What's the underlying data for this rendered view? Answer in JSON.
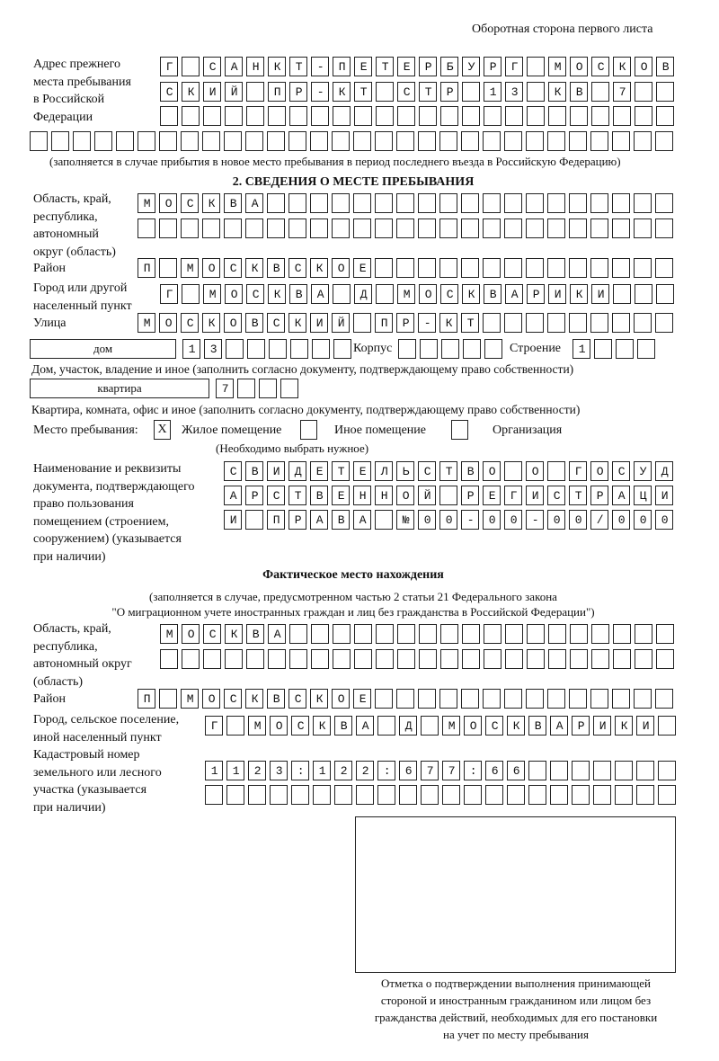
{
  "header": "Оборотная сторона первого листа",
  "previous_address": {
    "label": [
      "Адрес прежнего",
      "места пребывания",
      "в Российской",
      "Федерации"
    ],
    "rows": [
      "Г САНКТ-ПЕТЕРБУРГ МОСКОВ",
      "СКИЙ ПР-КТ СТР 13 КВ 7  ",
      "",
      ""
    ],
    "note": "(заполняется в случае прибытия в новое место пребывания в период последнего въезда в Российскую Федерацию)"
  },
  "section2": {
    "title": "2. СВЕДЕНИЯ О МЕСТЕ ПРЕБЫВАНИЯ",
    "region_label": [
      "Область, край,",
      "республика,",
      "автономный",
      "округ (область)"
    ],
    "region_rows": [
      "МОСКВА",
      ""
    ],
    "district_label": "Район",
    "district": "П МОСКВСКОЕ",
    "city_label": [
      "Город или другой",
      "населенный пункт"
    ],
    "city": "Г МОСКВА Д МОСКВАРИКИ",
    "street_label": "Улица",
    "street": "МОСКОВСКИЙ ПР-КТ",
    "house_type": "дом",
    "house": "13",
    "korpus_label": "Корпус",
    "korpus": "",
    "building_label": "Строение",
    "building": "1",
    "house_note": "Дом, участок, владение и иное (заполнить согласно документу, подтверждающему право собственности)",
    "flat_type": "квартира",
    "flat": "7",
    "flat_note": "Квартира, комната, офис и иное (заполнить согласно документу, подтверждающему право собственности)",
    "stay_label": "Место пребывания:",
    "stay_options": [
      {
        "label": "Жилое помещение",
        "mark": "X"
      },
      {
        "label": "Иное помещение",
        "mark": ""
      },
      {
        "label": "Организация",
        "mark": ""
      }
    ],
    "stay_note": "(Необходимо выбрать нужное)",
    "doc_label": [
      "Наименование и реквизиты",
      "документа, подтверждающего",
      "право пользования",
      "помещением (строением,",
      "сооружением) (указывается",
      "при наличии)"
    ],
    "doc_rows": [
      "СВИДЕТЕЛЬСТВО О ГОСУД",
      "АРСТВЕННОЙ РЕГИСТРАЦИ",
      "И ПРАВА №00-00-00/000"
    ]
  },
  "actual": {
    "title": "Фактическое место нахождения",
    "note": [
      "(заполняется в случае, предусмотренном частью 2 статьи 21 Федерального закона",
      "\"О миграционном учете иностранных граждан и лиц без гражданства в Российской Федерации\")"
    ],
    "region_label": [
      "Область, край,",
      "республика,",
      "автономный округ",
      "(область)"
    ],
    "region_rows": [
      "МОСКВА",
      ""
    ],
    "district_label": "Район",
    "district": "П МОСКВСКОЕ",
    "city_label": [
      "Город, сельское поселение,",
      "иной населенный пункт"
    ],
    "city": "Г МОСКВА Д МОСКВАРИКИ",
    "cadastral_label": [
      "Кадастровый номер",
      "земельного или лесного",
      "участка (указывается",
      "при наличии)"
    ],
    "cadastral_rows": [
      "1123:122:677:66",
      ""
    ]
  },
  "stamp_caption": [
    "Отметка о подтверждении выполнения принимающей",
    "стороной и иностранным гражданином или лицом без",
    "гражданства действий, необходимых для его постановки",
    "на учет по месту пребывания"
  ]
}
